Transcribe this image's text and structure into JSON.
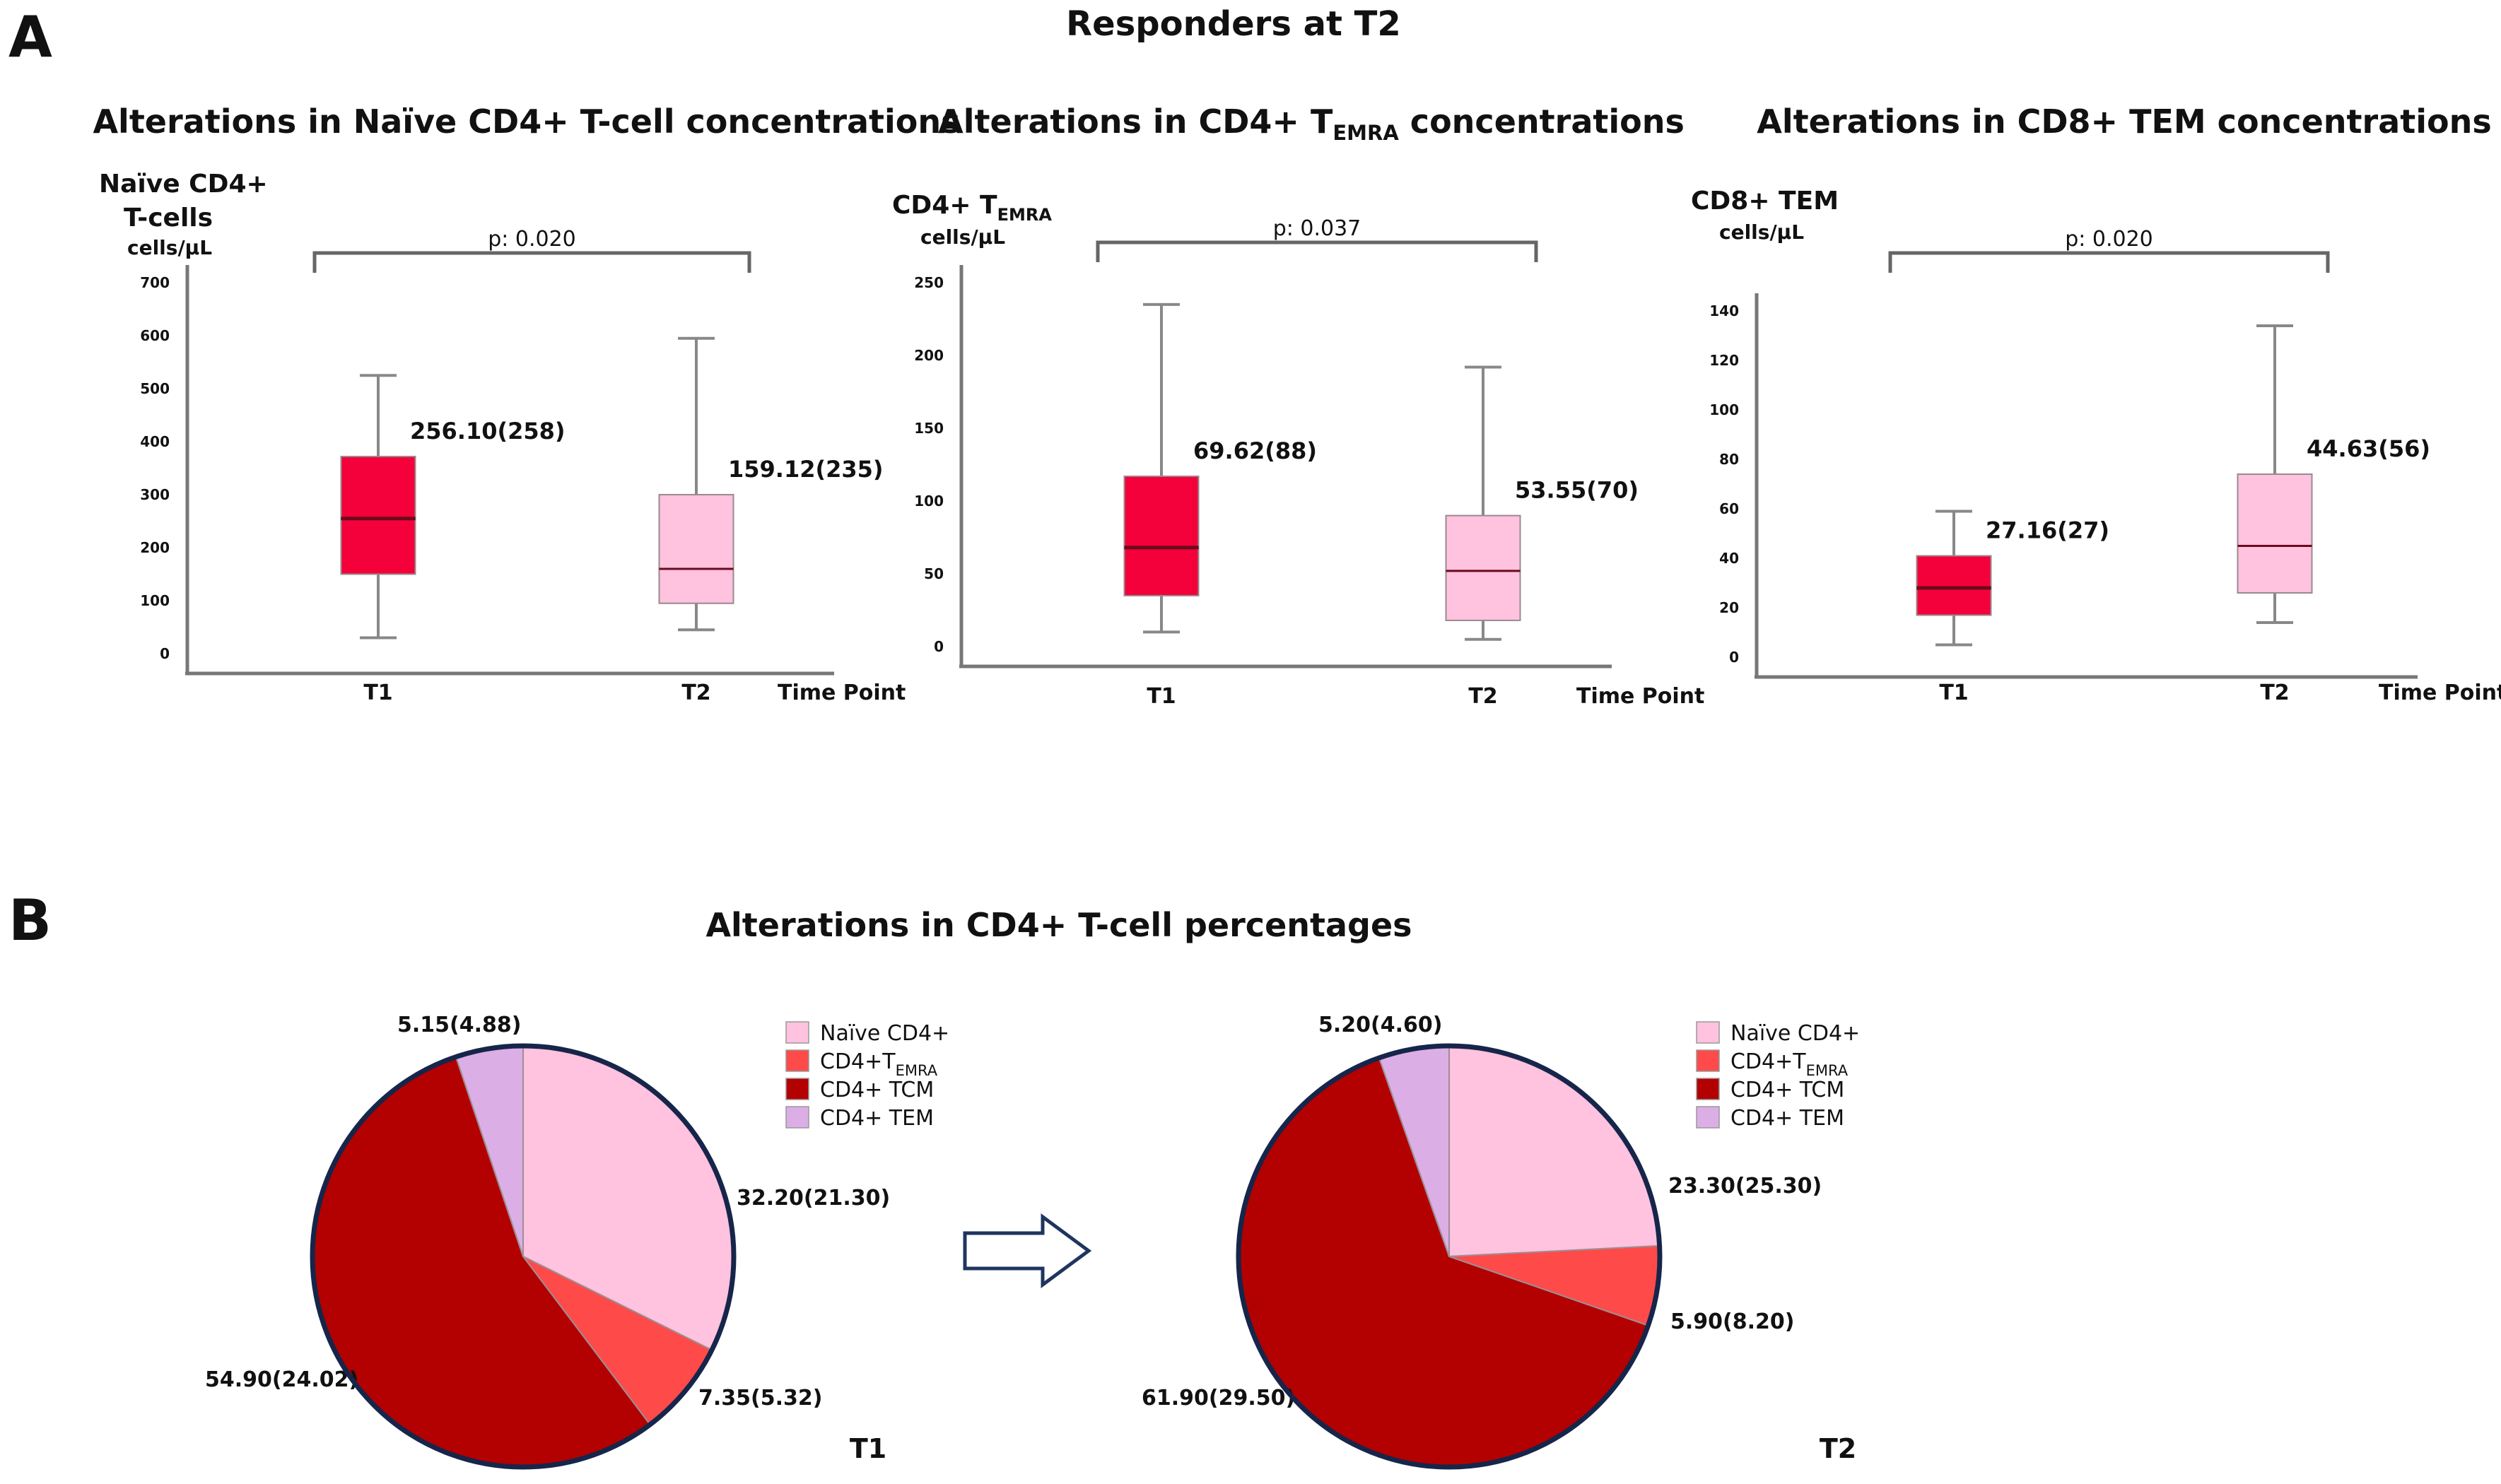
{
  "panel_a_label": "A",
  "panel_b_label": "B",
  "figure_title": "Responders at T2",
  "colors": {
    "t1_box": "#f4003a",
    "t2_box": "#ffc2df",
    "axis": "#777777",
    "median": "#6b0a1c"
  },
  "chart_data": [
    {
      "type": "box",
      "title": "Alterations in Naïve CD4+ T-cell concentrations",
      "title_sub": "",
      "title_after": "",
      "ylabel_lines": [
        "Naïve CD4+",
        "T-cells"
      ],
      "ylabel_sub": "",
      "units": "cells/μL",
      "xlabel": "Time Point",
      "ylim": [
        0,
        700
      ],
      "yticks": [
        0,
        100,
        200,
        300,
        400,
        500,
        600,
        700
      ],
      "pvalue": "p: 0.020",
      "groups": [
        {
          "name": "T1",
          "min": 30,
          "q1": 150,
          "median": 255,
          "q3": 372,
          "max": 525,
          "label": "256.10(258)",
          "color": "#f4003a"
        },
        {
          "name": "T2",
          "min": 45,
          "q1": 95,
          "median": 160,
          "q3": 300,
          "max": 595,
          "label": "159.12(235)",
          "color": "#ffc2df"
        }
      ]
    },
    {
      "type": "box",
      "title": "Alterations in CD4+ T",
      "title_sub": "EMRA",
      "title_after": " concentrations",
      "ylabel_lines": [
        "CD4+ T"
      ],
      "ylabel_sub": "EMRA",
      "units": "cells/μL",
      "xlabel": "Time Point",
      "ylim": [
        0,
        250
      ],
      "yticks": [
        0,
        50,
        100,
        150,
        200,
        250
      ],
      "pvalue": "p: 0.037",
      "groups": [
        {
          "name": "T1",
          "min": 10,
          "q1": 35,
          "median": 68,
          "q3": 117,
          "max": 235,
          "label": "69.62(88)",
          "color": "#f4003a"
        },
        {
          "name": "T2",
          "min": 5,
          "q1": 18,
          "median": 52,
          "q3": 90,
          "max": 192,
          "label": "53.55(70)",
          "color": "#ffc2df"
        }
      ]
    },
    {
      "type": "box",
      "title": "Alterations in CD8+ TEM concentrations",
      "title_sub": "",
      "title_after": "",
      "ylabel_lines": [
        "CD8+ TEM"
      ],
      "ylabel_sub": "",
      "units": "cells/μL",
      "xlabel": "Time Point",
      "ylim": [
        0,
        140
      ],
      "yticks": [
        0,
        20,
        40,
        60,
        80,
        100,
        120,
        140
      ],
      "pvalue": "p: 0.020",
      "groups": [
        {
          "name": "T1",
          "min": 5,
          "q1": 17,
          "median": 28,
          "q3": 41,
          "max": 59,
          "label": "27.16(27)",
          "color": "#f4003a"
        },
        {
          "name": "T2",
          "min": 14,
          "q1": 26,
          "median": 45,
          "q3": 74,
          "max": 134,
          "label": "44.63(56)",
          "color": "#ffc2df"
        }
      ]
    },
    {
      "type": "pie",
      "title": "Alterations in CD4+ T-cell percentages",
      "pies": [
        {
          "caption": "T1",
          "slices": [
            {
              "name": "Naïve CD4+",
              "value": 32.2,
              "label": "32.20(21.30)",
              "color": "#ffc2df"
            },
            {
              "name": "CD4+T_EMRA",
              "value": 7.35,
              "label": "7.35(5.32)",
              "color": "#ff4a4a"
            },
            {
              "name": "CD4+ TCM",
              "value": 54.9,
              "label": "54.90(24.02)",
              "color": "#b30000"
            },
            {
              "name": "CD4+ TEM",
              "value": 5.15,
              "label": "5.15(4.88)",
              "color": "#dcaee6"
            }
          ]
        },
        {
          "caption": "T2",
          "slices": [
            {
              "name": "Naïve CD4+",
              "value": 23.3,
              "label": "23.30(25.30)",
              "color": "#ffc2df"
            },
            {
              "name": "CD4+T_EMRA",
              "value": 5.9,
              "label": "5.90(8.20)",
              "color": "#ff4a4a"
            },
            {
              "name": "CD4+ TCM",
              "value": 61.9,
              "label": "61.90(29.50)",
              "color": "#b30000"
            },
            {
              "name": "CD4+ TEM",
              "value": 5.2,
              "label": "5.20(4.60)",
              "color": "#dcaee6"
            }
          ]
        }
      ],
      "legend": [
        {
          "text": "Naïve CD4+",
          "sub": "",
          "color": "#ffc2df"
        },
        {
          "text": "CD4+T",
          "sub": "EMRA",
          "color": "#ff4a4a"
        },
        {
          "text": "CD4+ TCM",
          "sub": "",
          "color": "#b30000"
        },
        {
          "text": "CD4+ TEM",
          "sub": "",
          "color": "#dcaee6"
        }
      ]
    }
  ]
}
